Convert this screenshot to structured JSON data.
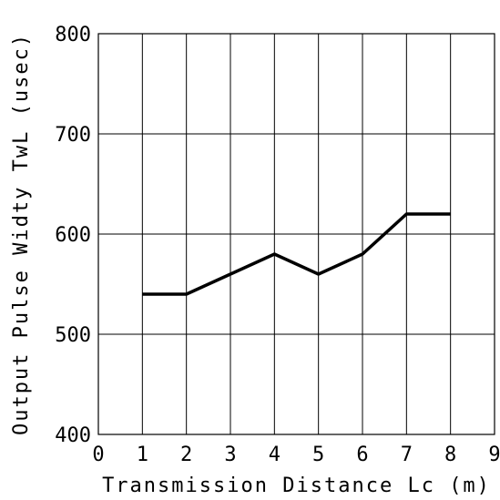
{
  "chart_data": {
    "type": "line",
    "title": "",
    "xlabel": "Transmission Distance Lc (m)",
    "ylabel": "Output Pulse Widty TwL (usec)",
    "xlim": [
      0,
      9
    ],
    "ylim": [
      400,
      800
    ],
    "x_ticks": [
      "0",
      "1",
      "2",
      "3",
      "4",
      "5",
      "6",
      "7",
      "8",
      "9"
    ],
    "y_ticks": [
      "400",
      "500",
      "600",
      "700",
      "800"
    ],
    "grid": true,
    "legend": "none",
    "series": [
      {
        "x": [
          1,
          2,
          3,
          4,
          5,
          6,
          7,
          8
        ],
        "values": [
          540,
          540,
          560,
          580,
          560,
          580,
          620,
          620
        ],
        "color": "#000000"
      }
    ]
  }
}
